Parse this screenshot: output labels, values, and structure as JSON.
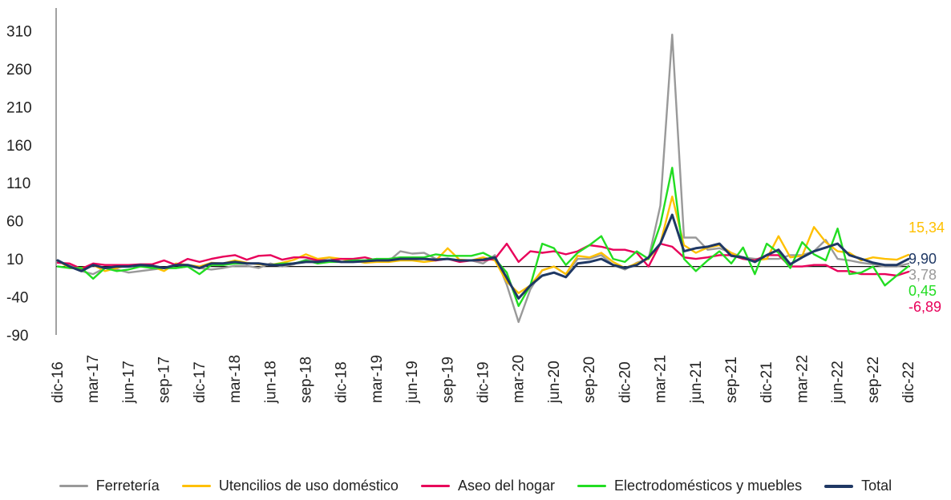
{
  "chart_data": {
    "type": "line",
    "x": [
      "dic-16",
      "ene-17",
      "feb-17",
      "mar-17",
      "abr-17",
      "may-17",
      "jun-17",
      "jul-17",
      "ago-17",
      "sep-17",
      "oct-17",
      "nov-17",
      "dic-17",
      "ene-18",
      "feb-18",
      "mar-18",
      "abr-18",
      "may-18",
      "jun-18",
      "jul-18",
      "ago-18",
      "sep-18",
      "oct-18",
      "nov-18",
      "dic-18",
      "ene-19",
      "feb-19",
      "mar-19",
      "abr-19",
      "may-19",
      "jun-19",
      "jul-19",
      "ago-19",
      "sep-19",
      "oct-19",
      "nov-19",
      "dic-19",
      "ene-20",
      "feb-20",
      "mar-20",
      "abr-20",
      "may-20",
      "jun-20",
      "jul-20",
      "ago-20",
      "sep-20",
      "oct-20",
      "nov-20",
      "dic-20",
      "ene-21",
      "feb-21",
      "mar-21",
      "abr-21",
      "may-21",
      "jun-21",
      "jul-21",
      "ago-21",
      "sep-21",
      "oct-21",
      "nov-21",
      "dic-21",
      "ene-22",
      "feb-22",
      "mar-22",
      "abr-22",
      "may-22",
      "jun-22",
      "jul-22",
      "ago-22",
      "sep-22",
      "oct-22",
      "nov-22",
      "dic-22"
    ],
    "x_tick_labels": [
      "dic-16",
      "mar-17",
      "jun-17",
      "sep-17",
      "dic-17",
      "mar-18",
      "jun-18",
      "sep-18",
      "dic-18",
      "mar-19",
      "jun-19",
      "sep-19",
      "dic-19",
      "mar-20",
      "jun-20",
      "sep-20",
      "dic-20",
      "mar-21",
      "jun-21",
      "sep-21",
      "dic-21",
      "mar-22",
      "jun-22",
      "sep-22",
      "dic-22"
    ],
    "y_ticks": [
      -90,
      -40,
      10,
      60,
      110,
      160,
      210,
      260,
      310
    ],
    "ylim": [
      -90,
      340
    ],
    "baseline": 0,
    "grid": false,
    "legend_position": "bottom",
    "series": [
      {
        "name": "Ferretería",
        "color": "#999999",
        "end_label": "3,78",
        "values": [
          6,
          2,
          -6,
          -10,
          -2,
          -4,
          -8,
          -6,
          -4,
          -2,
          -2,
          0,
          -2,
          -4,
          -2,
          1,
          1,
          -2,
          4,
          0,
          3,
          9,
          8,
          12,
          6,
          8,
          8,
          10,
          7,
          20,
          17,
          18,
          10,
          10,
          8,
          8,
          4,
          15,
          -24,
          -73,
          -30,
          -5,
          0,
          -10,
          10,
          10,
          15,
          2,
          -4,
          5,
          10,
          80,
          305,
          38,
          38,
          22,
          24,
          18,
          12,
          10,
          10,
          10,
          15,
          15,
          20,
          35,
          10,
          8,
          5,
          3,
          0,
          0,
          3.78
        ]
      },
      {
        "name": "Utencilios de uso doméstico",
        "color": "#FFC000",
        "end_label": "15,34",
        "values": [
          8,
          -2,
          -2,
          2,
          -6,
          -2,
          2,
          0,
          0,
          -6,
          4,
          2,
          0,
          5,
          4,
          8,
          5,
          3,
          2,
          5,
          9,
          16,
          10,
          12,
          10,
          8,
          5,
          6,
          6,
          8,
          8,
          6,
          8,
          24,
          9,
          8,
          12,
          8,
          -20,
          -35,
          -25,
          -5,
          0,
          -10,
          14,
          12,
          18,
          6,
          -2,
          4,
          10,
          30,
          92,
          28,
          18,
          25,
          28,
          18,
          10,
          8,
          10,
          40,
          12,
          14,
          52,
          32,
          20,
          18,
          8,
          12,
          10,
          9,
          15.34
        ]
      },
      {
        "name": "Aseo del hogar",
        "color": "#E8005A",
        "end_label": "-6,89",
        "values": [
          5,
          4,
          -3,
          4,
          2,
          2,
          2,
          3,
          3,
          8,
          2,
          10,
          6,
          10,
          13,
          15,
          9,
          14,
          15,
          9,
          12,
          12,
          8,
          8,
          10,
          10,
          12,
          8,
          8,
          10,
          10,
          10,
          8,
          10,
          6,
          8,
          8,
          10,
          30,
          6,
          20,
          18,
          20,
          16,
          20,
          28,
          26,
          22,
          22,
          18,
          0,
          30,
          26,
          12,
          10,
          12,
          15,
          15,
          10,
          8,
          15,
          15,
          0,
          0,
          2,
          2,
          -6,
          -6,
          -10,
          -10,
          -10,
          -12,
          -6.89
        ]
      },
      {
        "name": "Electrodomésticos y muebles",
        "color": "#22DD22",
        "end_label": "0,45",
        "values": [
          0,
          -2,
          -2,
          -16,
          -2,
          -6,
          -4,
          0,
          -2,
          -2,
          -2,
          0,
          -10,
          2,
          2,
          4,
          4,
          4,
          2,
          4,
          4,
          8,
          4,
          6,
          6,
          8,
          8,
          10,
          10,
          12,
          12,
          12,
          16,
          14,
          14,
          14,
          18,
          10,
          -8,
          -52,
          -25,
          30,
          24,
          2,
          18,
          28,
          40,
          10,
          6,
          20,
          10,
          55,
          130,
          10,
          -6,
          8,
          20,
          4,
          25,
          -10,
          30,
          18,
          -2,
          32,
          16,
          8,
          50,
          -10,
          -8,
          0,
          -25,
          -12,
          0.45
        ]
      },
      {
        "name": "Total",
        "color": "#1F3864",
        "end_label": "9,90",
        "values": [
          8,
          0,
          -6,
          2,
          -2,
          0,
          0,
          2,
          1,
          -2,
          2,
          2,
          -2,
          4,
          4,
          6,
          4,
          4,
          2,
          2,
          4,
          6,
          6,
          8,
          6,
          6,
          7,
          8,
          8,
          10,
          10,
          10,
          9,
          10,
          8,
          8,
          9,
          12,
          -15,
          -42,
          -25,
          -12,
          -8,
          -14,
          4,
          6,
          10,
          2,
          -2,
          2,
          12,
          30,
          68,
          20,
          24,
          26,
          30,
          14,
          12,
          6,
          15,
          22,
          3,
          12,
          20,
          25,
          30,
          15,
          10,
          5,
          2,
          2,
          9.9
        ]
      }
    ]
  },
  "legend": {
    "items": [
      {
        "label": "Ferretería",
        "color": "#999999"
      },
      {
        "label": "Utencilios de uso doméstico",
        "color": "#FFC000"
      },
      {
        "label": "Aseo del hogar",
        "color": "#E8005A"
      },
      {
        "label": "Electrodomésticos y muebles",
        "color": "#22DD22"
      },
      {
        "label": "Total",
        "color": "#1F3864"
      }
    ]
  }
}
